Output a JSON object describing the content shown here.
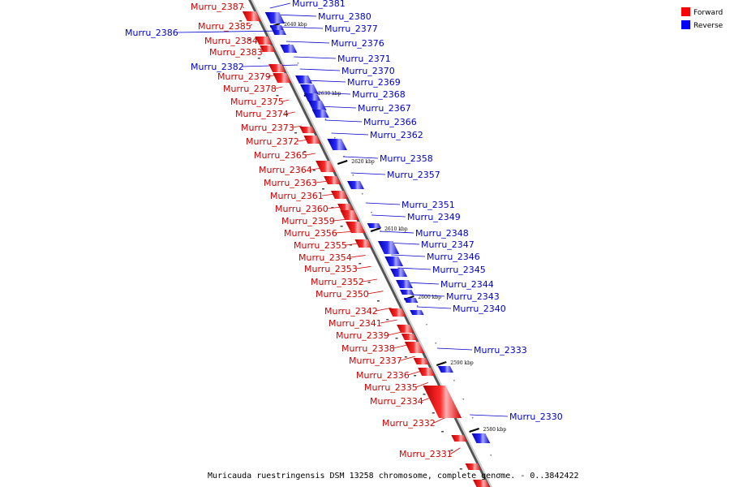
{
  "legend": {
    "forward": {
      "label": "Forward",
      "color": "#ff0000"
    },
    "reverse": {
      "label": "Reverse",
      "color": "#0000ff"
    }
  },
  "caption": "Muricauda ruestringensis DSM 13258 chromosome, complete genome. - 0..3842422",
  "ticks": [
    "2640 kbp",
    "2630 kbp",
    "2620 kbp",
    "2610 kbp",
    "2600 kbp",
    "2590 kbp",
    "2580 kbp"
  ],
  "forward_genes": [
    "Murru_2387",
    "Murru_2385",
    "Murru_2384",
    "Murru_2383",
    "Murru_2379",
    "Murru_2378",
    "Murru_2375",
    "Murru_2374",
    "Murru_2373",
    "Murru_2372",
    "Murru_2365",
    "Murru_2364",
    "Murru_2363",
    "Murru_2361",
    "Murru_2360",
    "Murru_2359",
    "Murru_2356",
    "Murru_2355",
    "Murru_2354",
    "Murru_2353",
    "Murru_2352",
    "Murru_2350",
    "Murru_2342",
    "Murru_2341",
    "Murru_2339",
    "Murru_2338",
    "Murru_2337",
    "Murru_2336",
    "Murru_2335",
    "Murru_2334",
    "Murru_2332",
    "Murru_2331"
  ],
  "reverse_genes": [
    "Murru_2381",
    "Murru_2386",
    "Murru_2380",
    "Murru_2377",
    "Murru_2376",
    "Murru_2382",
    "Murru_2371",
    "Murru_2370",
    "Murru_2369",
    "Murru_2368",
    "Murru_2367",
    "Murru_2366",
    "Murru_2362",
    "Murru_2358",
    "Murru_2357",
    "Murru_2351",
    "Murru_2349",
    "Murru_2348",
    "Murru_2347",
    "Murru_2346",
    "Murru_2345",
    "Murru_2344",
    "Murru_2343",
    "Murru_2340",
    "Murru_2333",
    "Murru_2330"
  ]
}
